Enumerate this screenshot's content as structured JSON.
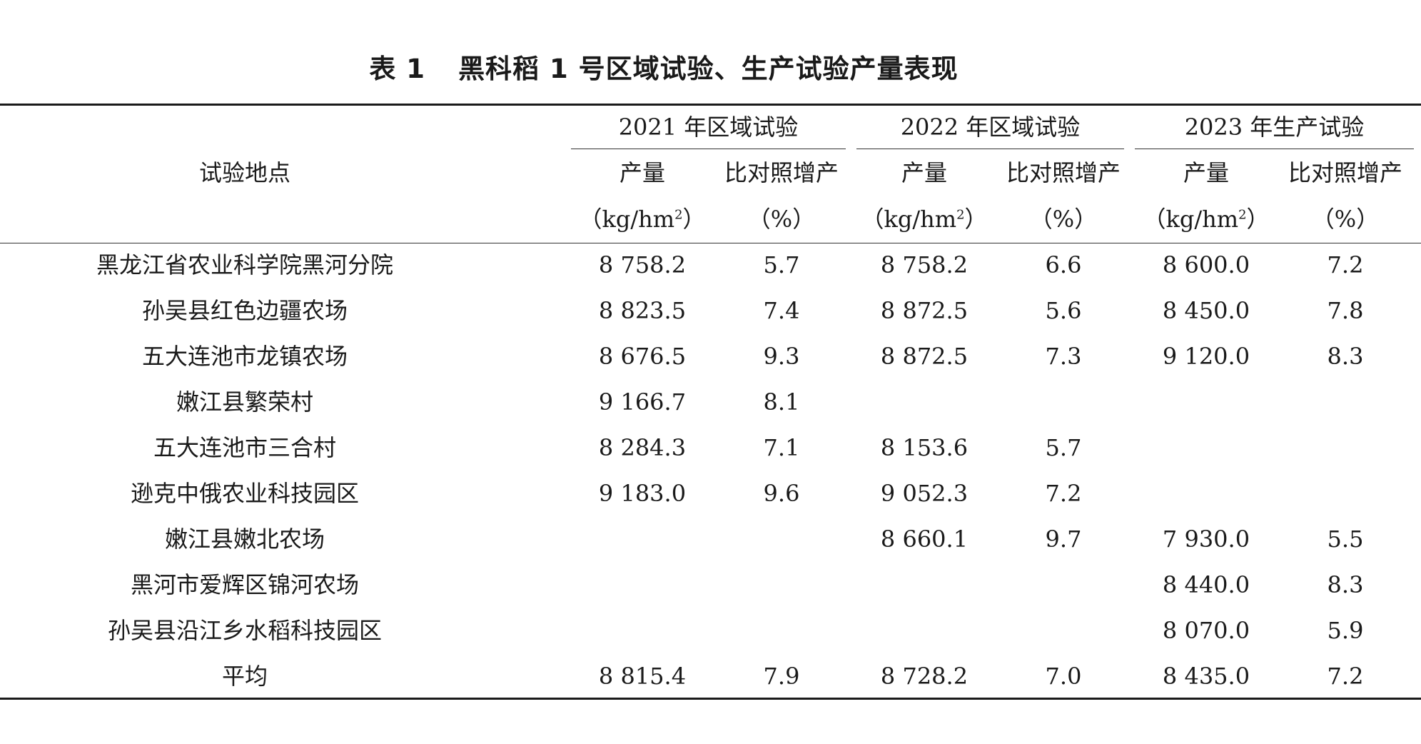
{
  "table": {
    "caption_label": "表 1",
    "caption_title": "黑科稻 1 号区域试验、生产试验产量表现",
    "header": {
      "site": "试验地点",
      "groups": [
        "2021 年区域试验",
        "2022 年区域试验",
        "2023 年生产试验"
      ],
      "yield_label": "产量",
      "increase_label": "比对照增产",
      "yield_unit_prefix": "（kg/hm",
      "yield_unit_sup": "2",
      "yield_unit_suffix": "）",
      "increase_unit": "（%）"
    },
    "rows": [
      {
        "site": "黑龙江省农业科学院黑河分院",
        "y2021": "8 758.2",
        "p2021": "5.7",
        "y2022": "8 758.2",
        "p2022": "6.6",
        "y2023": "8 600.0",
        "p2023": "7.2"
      },
      {
        "site": "孙吴县红色边疆农场",
        "y2021": "8 823.5",
        "p2021": "7.4",
        "y2022": "8 872.5",
        "p2022": "5.6",
        "y2023": "8 450.0",
        "p2023": "7.8"
      },
      {
        "site": "五大连池市龙镇农场",
        "y2021": "8 676.5",
        "p2021": "9.3",
        "y2022": "8 872.5",
        "p2022": "7.3",
        "y2023": "9 120.0",
        "p2023": "8.3"
      },
      {
        "site": "嫩江县繁荣村",
        "y2021": "9 166.7",
        "p2021": "8.1",
        "y2022": "",
        "p2022": "",
        "y2023": "",
        "p2023": ""
      },
      {
        "site": "五大连池市三合村",
        "y2021": "8 284.3",
        "p2021": "7.1",
        "y2022": "8 153.6",
        "p2022": "5.7",
        "y2023": "",
        "p2023": ""
      },
      {
        "site": "逊克中俄农业科技园区",
        "y2021": "9 183.0",
        "p2021": "9.6",
        "y2022": "9 052.3",
        "p2022": "7.2",
        "y2023": "",
        "p2023": ""
      },
      {
        "site": "嫩江县嫩北农场",
        "y2021": "",
        "p2021": "",
        "y2022": "8 660.1",
        "p2022": "9.7",
        "y2023": "7 930.0",
        "p2023": "5.5"
      },
      {
        "site": "黑河市爱辉区锦河农场",
        "y2021": "",
        "p2021": "",
        "y2022": "",
        "p2022": "",
        "y2023": "8 440.0",
        "p2023": "8.3"
      },
      {
        "site": "孙吴县沿江乡水稻科技园区",
        "y2021": "",
        "p2021": "",
        "y2022": "",
        "p2022": "",
        "y2023": "8 070.0",
        "p2023": "5.9"
      },
      {
        "site": "平均",
        "y2021": "8 815.4",
        "p2021": "7.9",
        "y2022": "8 728.2",
        "p2022": "7.0",
        "y2023": "8 435.0",
        "p2023": "7.2"
      }
    ]
  }
}
